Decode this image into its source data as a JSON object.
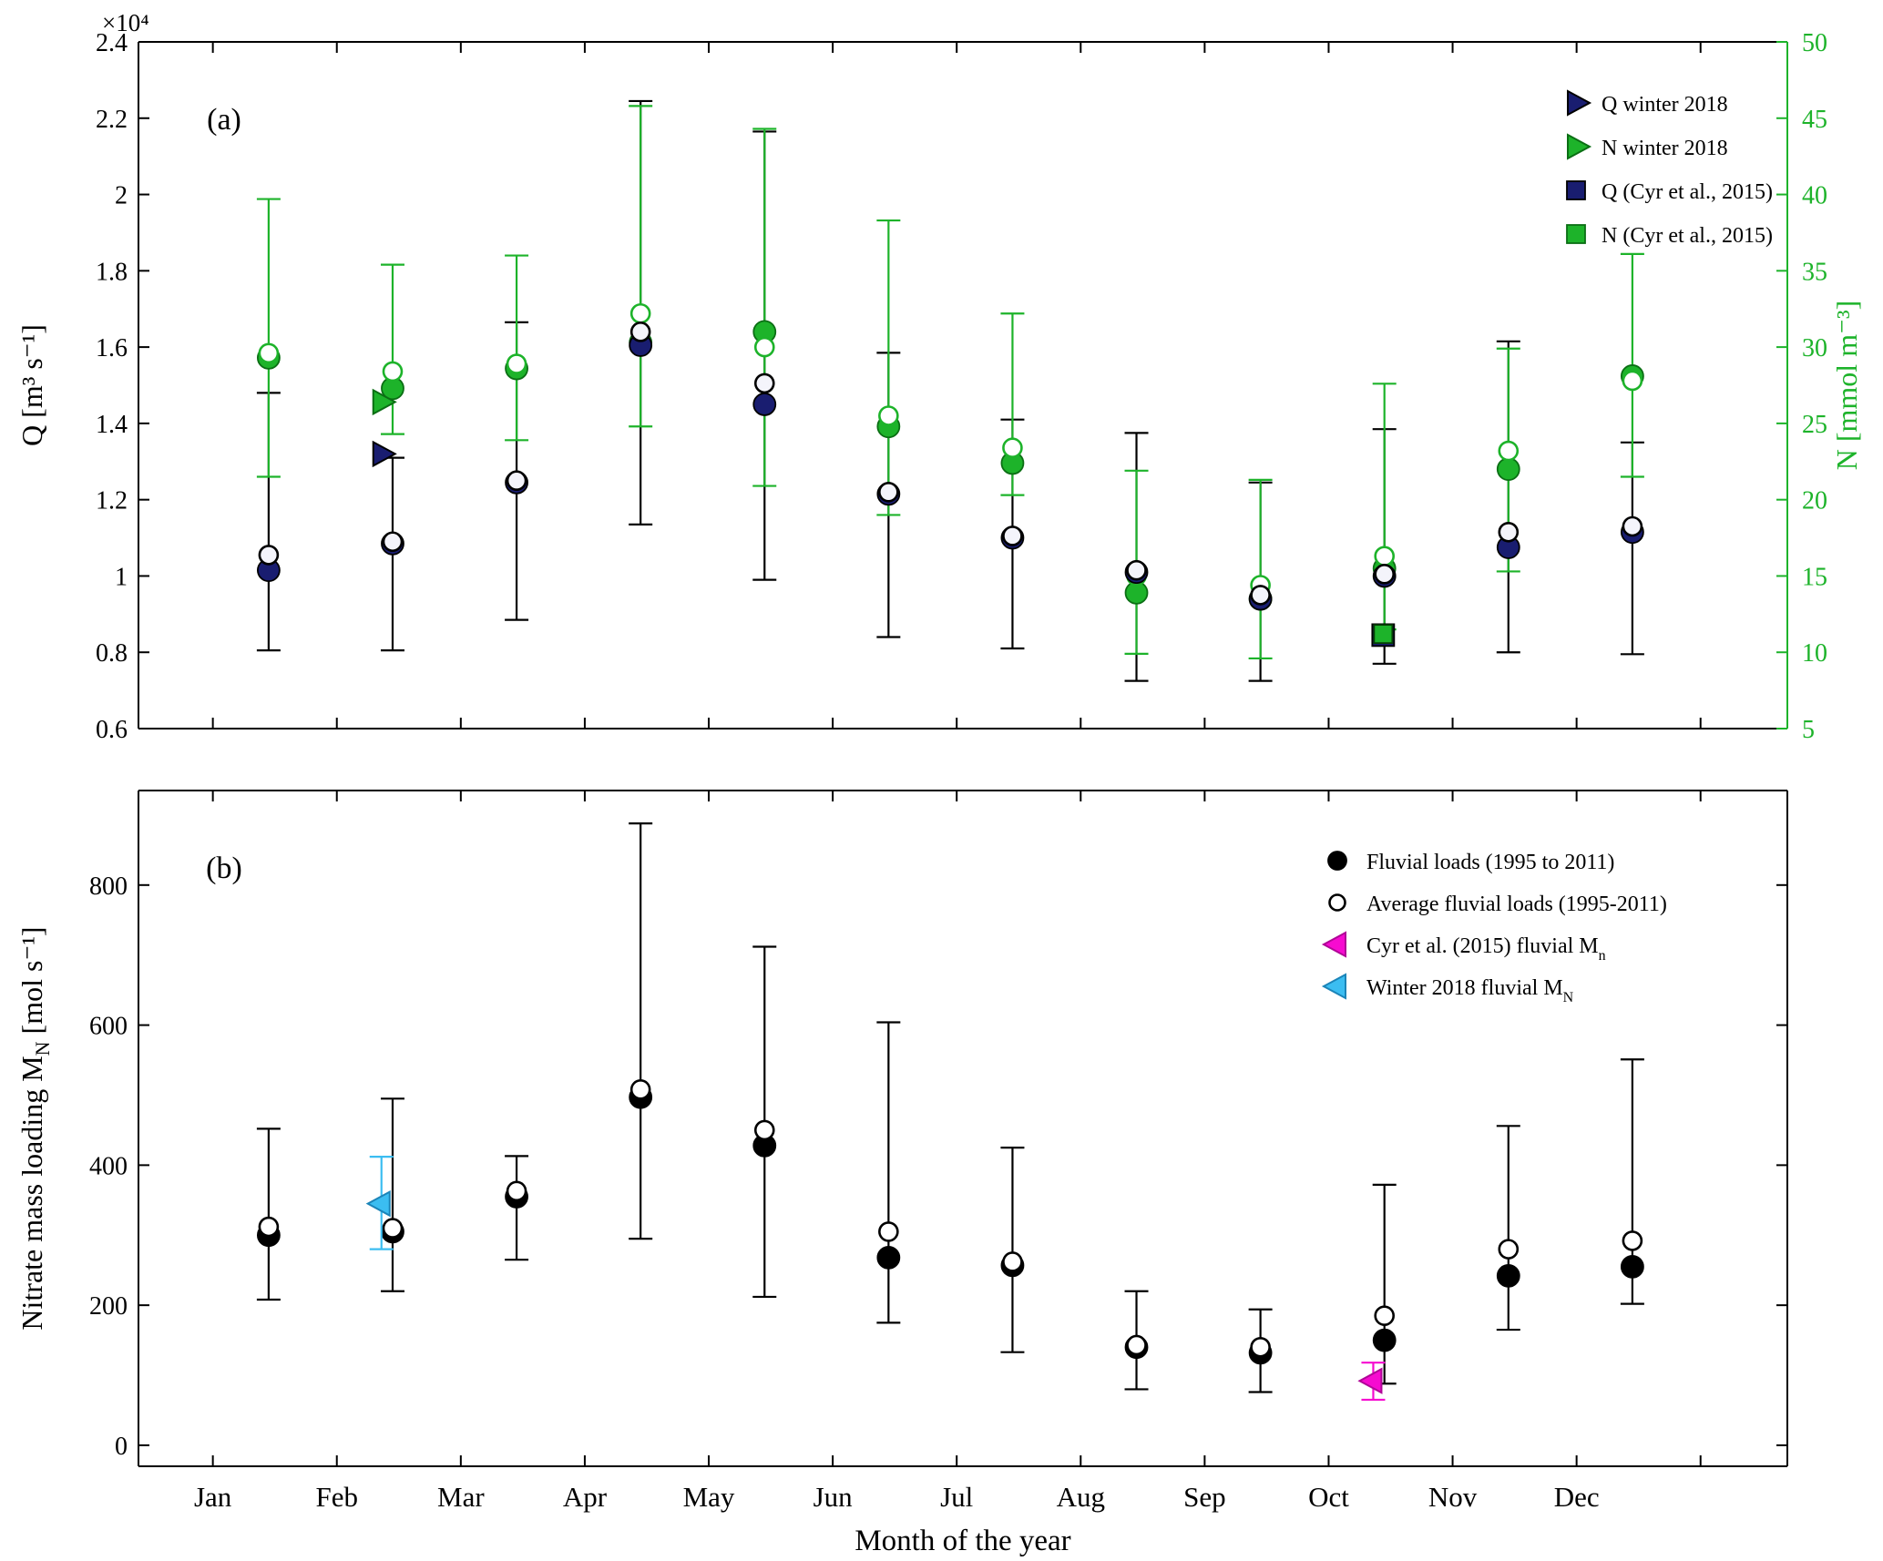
{
  "chart_data": [
    {
      "type": "scatter",
      "panel_label": "(a)",
      "categories": [
        "Jan",
        "Feb",
        "Mar",
        "Apr",
        "May",
        "Jun",
        "Jul",
        "Aug",
        "Sep",
        "Oct",
        "Nov",
        "Dec"
      ],
      "left_axis": {
        "label": "Q [m³ s⁻¹]",
        "offset_text": "×10⁴",
        "lim": [
          6000,
          24000
        ],
        "tick_values": [
          6000,
          8000,
          10000,
          12000,
          14000,
          16000,
          18000,
          20000,
          22000,
          24000
        ],
        "tick_labels": [
          "0.6",
          "0.8",
          "1",
          "1.2",
          "1.4",
          "1.6",
          "1.8",
          "2",
          "2.2",
          "2.4"
        ],
        "color": "#000000"
      },
      "right_axis": {
        "label": "N [mmol m⁻³]",
        "lim": [
          5,
          50
        ],
        "tick_values": [
          5,
          10,
          15,
          20,
          25,
          30,
          35,
          40,
          45,
          50
        ],
        "tick_labels": [
          "5",
          "10",
          "15",
          "20",
          "25",
          "30",
          "35",
          "40",
          "45",
          "50"
        ],
        "color": "#1db32a"
      },
      "series": [
        {
          "name": "Q monthly error range (1995-2011)",
          "kind": "errorbar",
          "axis": "left",
          "color": "#000000",
          "low": [
            8050,
            8050,
            8850,
            11350,
            9900,
            8400,
            8100,
            7250,
            7250,
            7700,
            8000,
            7950
          ],
          "high": [
            14800,
            13100,
            16650,
            22450,
            21650,
            15850,
            14100,
            13750,
            12450,
            13850,
            16150,
            13500
          ]
        },
        {
          "name": "N monthly error range (1995-2011)",
          "kind": "errorbar",
          "axis": "right",
          "color": "#1db32a",
          "low": [
            21.5,
            24.3,
            23.9,
            24.8,
            20.9,
            19.0,
            20.3,
            9.9,
            9.6,
            11.5,
            15.3,
            21.5
          ],
          "high": [
            39.7,
            35.4,
            36.0,
            45.8,
            44.3,
            38.3,
            32.2,
            21.9,
            21.3,
            27.6,
            29.9,
            36.1
          ]
        },
        {
          "name": "N monthly fluvial concentration",
          "kind": "circle-filled",
          "axis": "right",
          "fill": "#1db32a",
          "edge": "#0b6e14",
          "values": [
            29.3,
            27.3,
            28.6,
            30.3,
            31.0,
            24.8,
            22.4,
            13.9,
            13.5,
            15.5,
            22.0,
            28.1
          ]
        },
        {
          "name": "N monthly average concentration",
          "kind": "circle-open",
          "axis": "right",
          "fill": "#ffffff",
          "edge": "#1db32a",
          "values": [
            29.6,
            28.4,
            28.9,
            32.2,
            30.0,
            25.5,
            23.4,
            15.0,
            14.4,
            16.3,
            23.2,
            27.8
          ]
        },
        {
          "name": "Q monthly fluvial discharge",
          "kind": "circle-filled",
          "axis": "left",
          "fill": "#191d70",
          "edge": "#000000",
          "values": [
            10150,
            10850,
            12450,
            16050,
            14500,
            12150,
            11000,
            10100,
            9400,
            10000,
            10750,
            11150
          ]
        },
        {
          "name": "Q monthly average discharge",
          "kind": "circle-open",
          "axis": "left",
          "fill": "#f4f4fb",
          "edge": "#000000",
          "values": [
            10550,
            10900,
            12500,
            16400,
            15050,
            12200,
            11050,
            10150,
            9500,
            10050,
            11150,
            11300
          ]
        }
      ],
      "points": [
        {
          "name": "Q winter 2018",
          "kind": "triangle-right",
          "axis": "left",
          "x": 1.36,
          "value": 13200,
          "fill": "#191d70",
          "edge": "#000000"
        },
        {
          "name": "N winter 2018",
          "kind": "triangle-right",
          "axis": "right",
          "x": 1.36,
          "value": 26.4,
          "fill": "#1db32a",
          "edge": "#0b6e14"
        },
        {
          "name": "Q (Cyr et al., 2015)",
          "kind": "square",
          "axis": "left",
          "x": 9.44,
          "value": 8450,
          "fill": "#191d70",
          "edge": "#000000",
          "size": 24
        },
        {
          "name": "N (Cyr et al., 2015)",
          "kind": "square",
          "axis": "right",
          "x": 9.44,
          "value": 11.2,
          "fill": "#1db32a",
          "edge": "#063e06",
          "size": 20
        }
      ],
      "legend": [
        {
          "label": "Q winter 2018",
          "marker": "triangle-right",
          "fill": "#191d70",
          "edge": "#000000"
        },
        {
          "label": "N winter 2018",
          "marker": "triangle-right",
          "fill": "#1db32a",
          "edge": "#0b6e14"
        },
        {
          "label": "Q (Cyr et al., 2015)",
          "marker": "square",
          "fill": "#191d70",
          "edge": "#000000"
        },
        {
          "label": "N (Cyr et al., 2015)",
          "marker": "square",
          "fill": "#1db32a",
          "edge": "#0b6e14"
        }
      ]
    },
    {
      "type": "scatter",
      "panel_label": "(b)",
      "categories": [
        "Jan",
        "Feb",
        "Mar",
        "Apr",
        "May",
        "Jun",
        "Jul",
        "Aug",
        "Sep",
        "Oct",
        "Nov",
        "Dec"
      ],
      "xlabel": "Month of the year",
      "y_axis": {
        "label_parts": {
          "pre": "Nitrate mass loading M",
          "sub": "N",
          "post": " [mol s⁻¹]"
        },
        "lim": [
          -30,
          935
        ],
        "tick_values": [
          0,
          200,
          400,
          600,
          800
        ],
        "tick_labels": [
          "0",
          "200",
          "400",
          "600",
          "800"
        ]
      },
      "series": [
        {
          "name": "Mass loading error range (1995-2011)",
          "kind": "errorbar",
          "axis": "left",
          "color": "#000000",
          "low": [
            208,
            220,
            265,
            295,
            212,
            175,
            133,
            80,
            76,
            88,
            165,
            202
          ],
          "high": [
            452,
            495,
            413,
            888,
            712,
            604,
            425,
            220,
            194,
            372,
            456,
            551
          ]
        },
        {
          "name": "Fluvial loads (1995 to 2011)",
          "kind": "circle-filled",
          "axis": "left",
          "fill": "#000000",
          "edge": "#000000",
          "values": [
            300,
            305,
            355,
            497,
            428,
            268,
            257,
            140,
            132,
            150,
            242,
            255
          ]
        },
        {
          "name": "Average fluvial loads (1995-2011)",
          "kind": "circle-open",
          "axis": "left",
          "fill": "#ffffff",
          "edge": "#000000",
          "values": [
            312,
            310,
            363,
            508,
            450,
            305,
            262,
            143,
            140,
            185,
            280,
            292
          ]
        }
      ],
      "points": [
        {
          "name": "Winter 2018 fluvial MN",
          "kind": "triangle-left",
          "axis": "left",
          "x": 1.36,
          "value": 345,
          "low": 280,
          "high": 412,
          "color": "#3bbdf1",
          "fill": "#3bbdf1",
          "edge": "#1b84b8"
        },
        {
          "name": "Cyr et al. (2015) fluvial Mn",
          "kind": "triangle-left",
          "axis": "left",
          "x": 9.36,
          "value": 92,
          "low": 65,
          "high": 118,
          "color": "#f60bd0",
          "fill": "#f60bd0",
          "edge": "#b00697"
        }
      ],
      "legend": [
        {
          "label_parts": {
            "pre": "Fluvial loads (1995 to 2011)"
          },
          "marker": "circle-filled",
          "fill": "#000000",
          "edge": "#000000"
        },
        {
          "label_parts": {
            "pre": "Average fluvial loads (1995-2011)"
          },
          "marker": "circle-open",
          "fill": "#ffffff",
          "edge": "#000000"
        },
        {
          "label_parts": {
            "pre": "Cyr et al. (2015) fluvial M",
            "sub": "n"
          },
          "marker": "triangle-left",
          "fill": "#f60bd0",
          "edge": "#b00697"
        },
        {
          "label_parts": {
            "pre": "Winter 2018 fluvial M",
            "sub": "N"
          },
          "marker": "triangle-left",
          "fill": "#3bbdf1",
          "edge": "#1b84b8"
        }
      ]
    }
  ]
}
